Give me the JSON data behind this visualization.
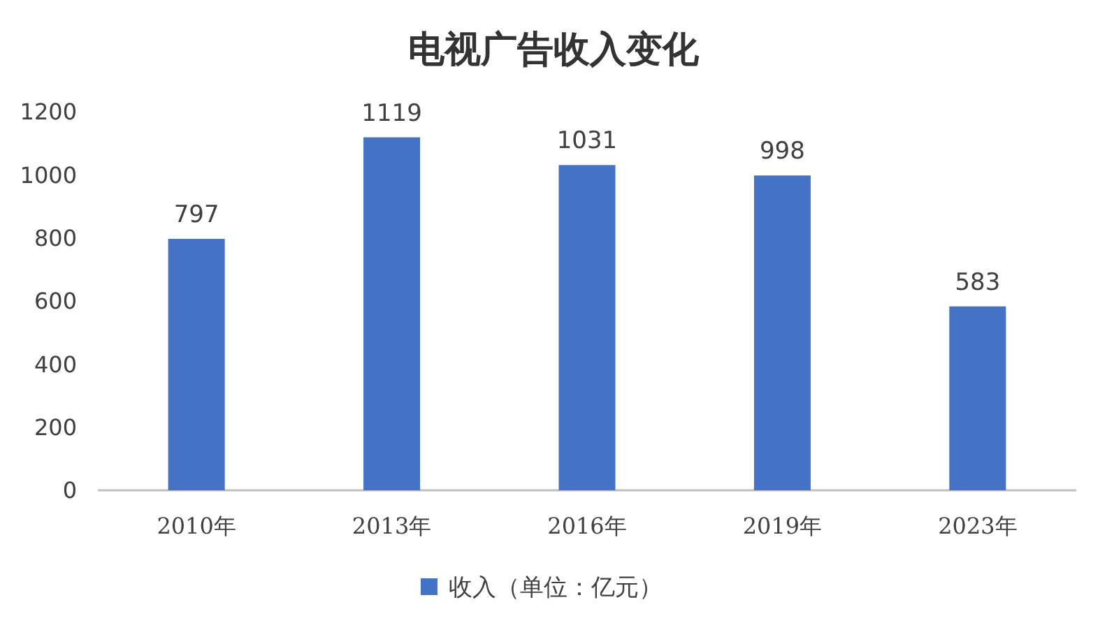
{
  "chart_data": {
    "type": "bar",
    "title": "电视广告收入变化",
    "categories": [
      "2010年",
      "2013年",
      "2016年",
      "2019年",
      "2023年"
    ],
    "series": [
      {
        "name": "收入（单位：亿元）",
        "color": "#4472c4",
        "values": [
          797,
          1119,
          1031,
          998,
          583
        ]
      }
    ],
    "ylim": [
      0,
      1200
    ],
    "yticks": [
      0,
      200,
      400,
      600,
      800,
      1000,
      1200
    ],
    "grid": false,
    "legend": "bottom",
    "data_labels": true
  }
}
